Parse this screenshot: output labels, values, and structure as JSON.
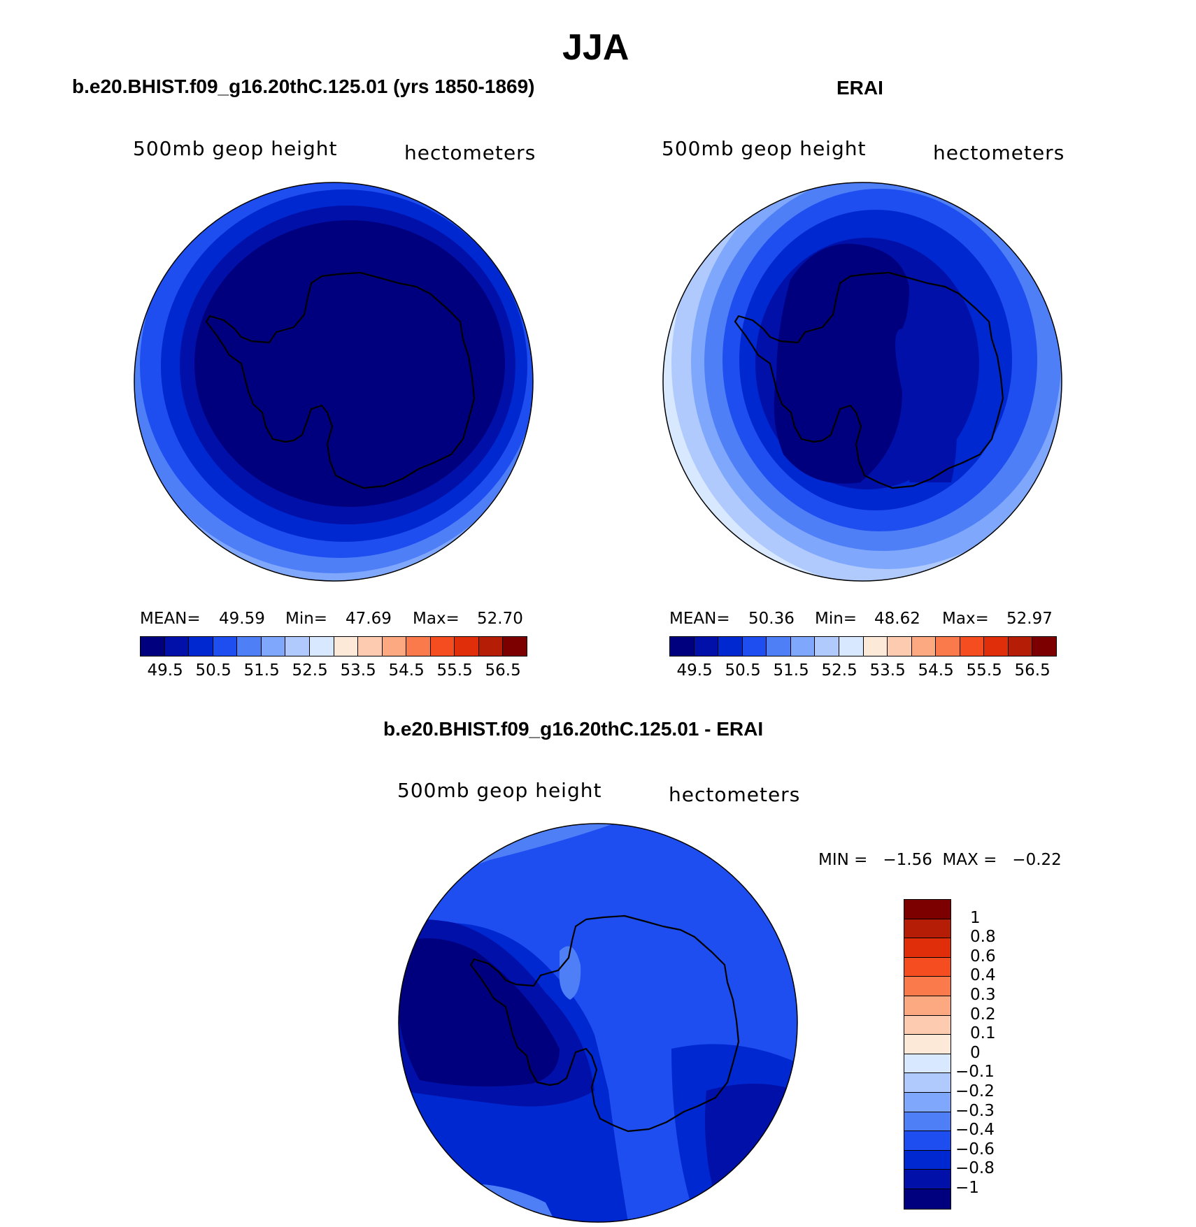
{
  "season": "JJA",
  "variable_label": "500mb geop height",
  "units_label": "hectometers",
  "panels": {
    "model": {
      "title": "b.e20.BHIST.f09_g16.20thC.125.01 (yrs 1850-1869)",
      "stats": {
        "mean_label": "MEAN=",
        "mean": "49.59",
        "min_label": "Min=",
        "min": "47.69",
        "max_label": "Max=",
        "max": "52.70"
      }
    },
    "obs": {
      "title": "ERAI",
      "stats": {
        "mean_label": "MEAN=",
        "mean": "50.36",
        "min_label": "Min=",
        "min": "48.62",
        "max_label": "Max=",
        "max": "52.97"
      }
    },
    "diff": {
      "title": "b.e20.BHIST.f09_g16.20thC.125.01 - ERAI",
      "stats_text": "MIN =   −1.56  MAX =   −0.22"
    }
  },
  "colorbar_abs": {
    "colors": [
      "#00007f",
      "#0010a8",
      "#0028d0",
      "#1e4ef0",
      "#4f7ff7",
      "#7fa7fb",
      "#b0cafd",
      "#d8e8ff",
      "#fde9d8",
      "#fdcbb0",
      "#fca880",
      "#fb7a4c",
      "#f54d20",
      "#e02e0a",
      "#b51d06",
      "#7d0000"
    ],
    "labels": [
      "49.5",
      "50.5",
      "51.5",
      "52.5",
      "53.5",
      "54.5",
      "55.5",
      "56.5"
    ]
  },
  "colorbar_diff": {
    "colors_top_to_bottom": [
      "#7d0000",
      "#b51d06",
      "#e02e0a",
      "#f54d20",
      "#fb7a4c",
      "#fca880",
      "#fdcbb0",
      "#fde9d8",
      "#d8e8ff",
      "#b0cafd",
      "#7fa7fb",
      "#4f7ff7",
      "#1e4ef0",
      "#0028d0",
      "#0010a8",
      "#00007f"
    ],
    "labels": [
      "1",
      "0.8",
      "0.6",
      "0.4",
      "0.3",
      "0.2",
      "0.1",
      "0",
      "−0.1",
      "−0.2",
      "−0.3",
      "−0.4",
      "−0.6",
      "−0.8",
      "−1"
    ]
  },
  "map_colors": {
    "darkest": "#00007f",
    "dark": "#0010a8",
    "mid_dark": "#0028d0",
    "mid": "#1e4ef0",
    "light": "#4f7ff7",
    "lighter": "#7fa7fb",
    "lightest": "#b0cafd",
    "pale": "#d8e8ff"
  }
}
